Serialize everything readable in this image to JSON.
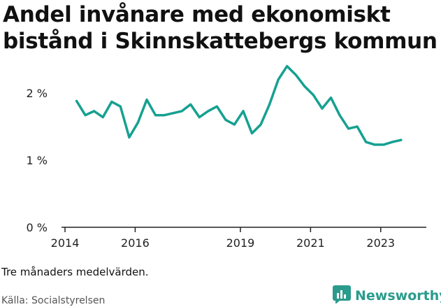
{
  "title_line1": "Andel invånare med ekonomiskt",
  "title_line2": "bistånd i Skinnskattebergs kommun",
  "note": "Tre månaders medelvärden.",
  "source": "Källa: Socialstyrelsen",
  "brand": {
    "name": "Newsworthy",
    "color": "#2a9b8c",
    "icon": "bar-chart-logo-icon"
  },
  "colors": {
    "line": "#16a091",
    "axis": "#222222",
    "tick_text": "#222222"
  },
  "chart_data": {
    "type": "line",
    "title": "Andel invånare med ekonomiskt bistånd i Skinnskattebergs kommun",
    "xlabel": "",
    "ylabel": "",
    "ylim": [
      0,
      2.5
    ],
    "xlim": [
      2013.9,
      2024.3
    ],
    "grid": false,
    "x_ticks": [
      {
        "value": 2014,
        "label": "2014"
      },
      {
        "value": 2016,
        "label": "2016"
      },
      {
        "value": 2019,
        "label": "2019"
      },
      {
        "value": 2021,
        "label": "2021"
      },
      {
        "value": 2023,
        "label": "2023"
      }
    ],
    "y_ticks": [
      {
        "value": 0,
        "label": "0 %"
      },
      {
        "value": 1,
        "label": "1 %"
      },
      {
        "value": 2,
        "label": "2 %"
      }
    ],
    "series": [
      {
        "values": [
          {
            "x": 2014.33,
            "y": 1.88
          },
          {
            "x": 2014.58,
            "y": 1.67
          },
          {
            "x": 2014.83,
            "y": 1.73
          },
          {
            "x": 2015.08,
            "y": 1.64
          },
          {
            "x": 2015.33,
            "y": 1.87
          },
          {
            "x": 2015.58,
            "y": 1.8
          },
          {
            "x": 2015.83,
            "y": 1.34
          },
          {
            "x": 2016.08,
            "y": 1.56
          },
          {
            "x": 2016.33,
            "y": 1.9
          },
          {
            "x": 2016.58,
            "y": 1.67
          },
          {
            "x": 2016.83,
            "y": 1.67
          },
          {
            "x": 2017.08,
            "y": 1.7
          },
          {
            "x": 2017.33,
            "y": 1.73
          },
          {
            "x": 2017.58,
            "y": 1.83
          },
          {
            "x": 2017.83,
            "y": 1.64
          },
          {
            "x": 2018.08,
            "y": 1.73
          },
          {
            "x": 2018.33,
            "y": 1.8
          },
          {
            "x": 2018.58,
            "y": 1.6
          },
          {
            "x": 2018.83,
            "y": 1.53
          },
          {
            "x": 2019.08,
            "y": 1.73
          },
          {
            "x": 2019.33,
            "y": 1.4
          },
          {
            "x": 2019.58,
            "y": 1.53
          },
          {
            "x": 2019.83,
            "y": 1.83
          },
          {
            "x": 2020.08,
            "y": 2.2
          },
          {
            "x": 2020.33,
            "y": 2.4
          },
          {
            "x": 2020.58,
            "y": 2.27
          },
          {
            "x": 2020.83,
            "y": 2.1
          },
          {
            "x": 2021.08,
            "y": 1.97
          },
          {
            "x": 2021.33,
            "y": 1.77
          },
          {
            "x": 2021.58,
            "y": 1.93
          },
          {
            "x": 2021.83,
            "y": 1.67
          },
          {
            "x": 2022.08,
            "y": 1.47
          },
          {
            "x": 2022.33,
            "y": 1.5
          },
          {
            "x": 2022.58,
            "y": 1.27
          },
          {
            "x": 2022.83,
            "y": 1.23
          },
          {
            "x": 2023.08,
            "y": 1.23
          },
          {
            "x": 2023.33,
            "y": 1.27
          },
          {
            "x": 2023.58,
            "y": 1.3
          }
        ]
      }
    ]
  }
}
